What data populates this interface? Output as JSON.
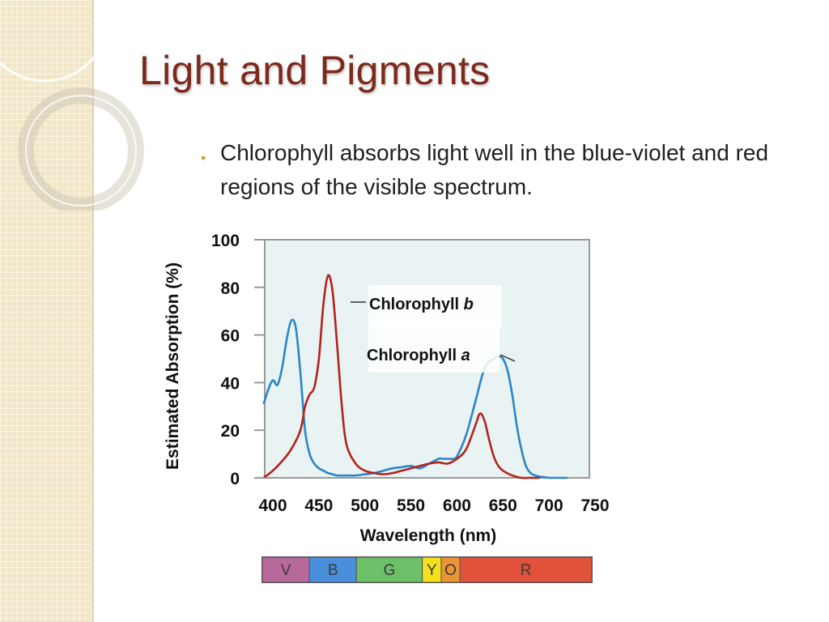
{
  "slide": {
    "title": "Light and Pigments",
    "bullet_text": "Chlorophyll absorbs light well in the blue-violet and red regions of the visible spectrum."
  },
  "colors": {
    "title": "#7b2a1c",
    "chlorophyll_a": "#2a86c8",
    "chlorophyll_b": "#b3221c",
    "plot_background": "#e9f3f3"
  },
  "spectrum_bands": [
    {
      "label": "V",
      "from": 400,
      "to": 450,
      "color": "#b8699c"
    },
    {
      "label": "B",
      "from": 450,
      "to": 500,
      "color": "#4a8fdb"
    },
    {
      "label": "G",
      "from": 500,
      "to": 570,
      "color": "#6dbf68"
    },
    {
      "label": "Y",
      "from": 570,
      "to": 590,
      "color": "#f3e21d"
    },
    {
      "label": "O",
      "from": 590,
      "to": 610,
      "color": "#ea9434"
    },
    {
      "label": "R",
      "from": 610,
      "to": 750,
      "color": "#e2513a"
    }
  ],
  "chart_data": {
    "type": "line",
    "title": "",
    "xlabel": "Wavelength (nm)",
    "ylabel": "Estimated Absorption (%)",
    "xlim": [
      390,
      750
    ],
    "ylim": [
      0,
      100
    ],
    "xticks": [
      400,
      450,
      500,
      550,
      600,
      650,
      700,
      750
    ],
    "yticks": [
      0,
      20,
      40,
      60,
      80,
      100
    ],
    "grid": false,
    "series": [
      {
        "name": "Chlorophyll a",
        "x": [
          390,
          395,
          400,
          405,
          410,
          415,
          420,
          425,
          430,
          435,
          440,
          445,
          450,
          455,
          460,
          465,
          470,
          480,
          490,
          500,
          510,
          520,
          530,
          540,
          550,
          560,
          570,
          580,
          585,
          590,
          595,
          600,
          610,
          620,
          630,
          640,
          645,
          650,
          655,
          660,
          665,
          670,
          675,
          680,
          685,
          690,
          695,
          700,
          705,
          710,
          715,
          720
        ],
        "y": [
          31,
          37,
          41,
          39,
          46,
          58,
          66,
          63,
          44,
          20,
          10,
          6,
          4,
          3,
          2,
          1.5,
          1,
          1,
          1,
          1.5,
          2,
          3,
          4,
          4.5,
          5,
          4,
          6,
          8,
          8,
          8,
          8,
          9,
          18,
          32,
          46,
          50,
          51,
          50,
          45,
          35,
          22,
          12,
          5,
          2,
          1,
          0.5,
          0.3,
          0,
          0,
          0,
          0,
          0
        ]
      },
      {
        "name": "Chlorophyll b",
        "x": [
          390,
          400,
          410,
          420,
          430,
          435,
          440,
          445,
          450,
          455,
          460,
          465,
          470,
          475,
          480,
          490,
          500,
          510,
          520,
          530,
          540,
          550,
          560,
          570,
          580,
          590,
          600,
          610,
          620,
          625,
          630,
          635,
          640,
          645,
          650,
          660,
          670,
          680,
          690
        ],
        "y": [
          0,
          3,
          7,
          12,
          20,
          30,
          35,
          38,
          50,
          73,
          85,
          78,
          55,
          30,
          14,
          6,
          3,
          2,
          1.5,
          2,
          3,
          4,
          5,
          6,
          6.5,
          6,
          8,
          12,
          22,
          27,
          24,
          16,
          9,
          5,
          3,
          1,
          0,
          0,
          0
        ]
      }
    ],
    "annotations": [
      {
        "text": "Chlorophyll b",
        "series": "Chlorophyll b"
      },
      {
        "text": "Chlorophyll a",
        "series": "Chlorophyll a"
      }
    ]
  }
}
